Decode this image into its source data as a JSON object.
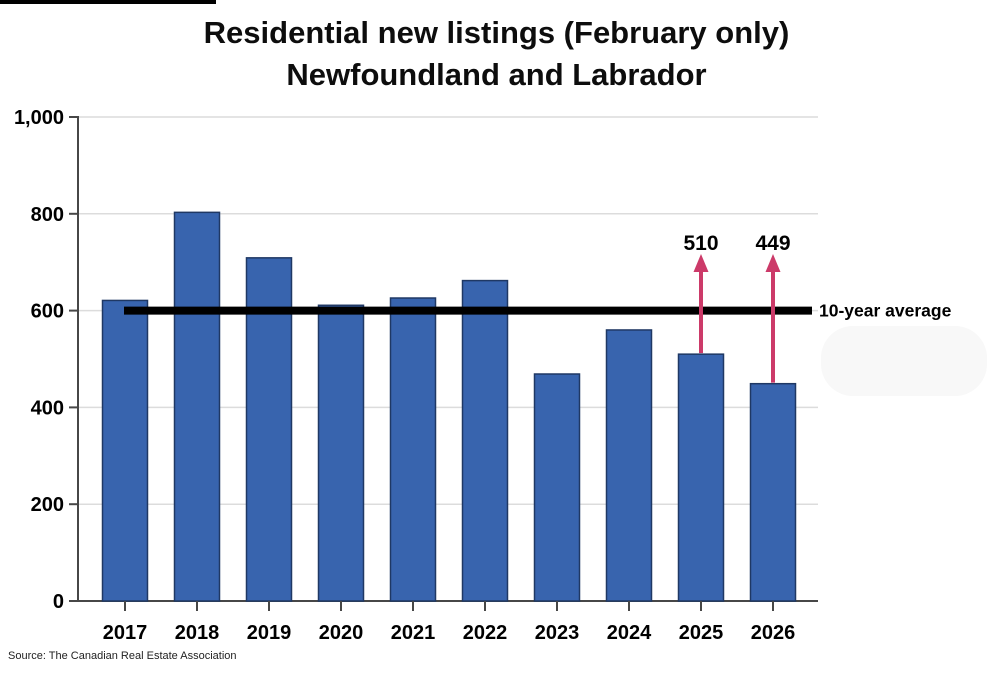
{
  "title": {
    "line1": "Residential new listings (February only)",
    "line2": "Newfoundland and Labrador"
  },
  "source": "Source: The Canadian Real Estate Association",
  "chart_data": {
    "type": "bar",
    "categories": [
      "2017",
      "2018",
      "2019",
      "2020",
      "2021",
      "2022",
      "2023",
      "2024",
      "2025",
      "2026"
    ],
    "values": [
      621,
      803,
      709,
      611,
      626,
      662,
      469,
      560,
      510,
      449
    ],
    "title": "Residential new listings (February only) Newfoundland and Labrador",
    "xlabel": "",
    "ylabel": "",
    "ylim": [
      0,
      1000
    ],
    "yticks": [
      0,
      200,
      400,
      600,
      800,
      1000
    ],
    "ytick_labels": [
      "0",
      "200",
      "400",
      "600",
      "800",
      "1,000"
    ],
    "grid": true,
    "legend": "none",
    "average_line": {
      "value": 600,
      "label": "10-year average"
    },
    "annotations": [
      {
        "category": "2025",
        "label": "510"
      },
      {
        "category": "2026",
        "label": "449"
      }
    ],
    "colors": {
      "bar_fill": "#3864ae",
      "bar_border": "#1f3864",
      "arrow": "#cc3a69",
      "grid": "#dcdcdc",
      "axis": "#474747",
      "average_line": "#000000",
      "text": "#000000"
    }
  }
}
